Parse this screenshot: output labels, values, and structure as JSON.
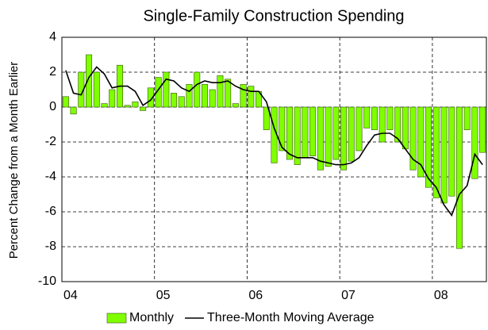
{
  "chart_data": {
    "type": "bar_line",
    "title": "Single-Family Construction Spending",
    "y_label": "Percent Change from a  Month Earlier",
    "categories": [
      "04",
      null,
      null,
      null,
      null,
      null,
      null,
      null,
      null,
      null,
      null,
      null,
      "05",
      null,
      null,
      null,
      null,
      null,
      null,
      null,
      null,
      null,
      null,
      null,
      "06",
      null,
      null,
      null,
      null,
      null,
      null,
      null,
      null,
      null,
      null,
      null,
      "07",
      null,
      null,
      null,
      null,
      null,
      null,
      null,
      null,
      null,
      null,
      null,
      "08",
      null,
      null,
      null,
      null,
      null,
      null
    ],
    "series": [
      {
        "name": "Monthly",
        "color": "#80ff00",
        "kind": "bar",
        "values": [
          0.6,
          -0.4,
          2.0,
          3.0,
          2.0,
          0.2,
          1.0,
          2.4,
          0.1,
          0.3,
          -0.2,
          1.1,
          1.7,
          2.0,
          0.8,
          0.6,
          1.3,
          2.0,
          1.3,
          1.0,
          1.8,
          1.6,
          0.2,
          1.3,
          1.2,
          0.9,
          -1.3,
          -3.2,
          -2.5,
          -3.0,
          -3.3,
          -2.9,
          -2.8,
          -3.6,
          -3.4,
          -3.0,
          -3.6,
          -3.1,
          -2.5,
          -1.2,
          -1.3,
          -2.0,
          -1.3,
          -2.0,
          -2.4,
          -3.6,
          -4.0,
          -4.6,
          -5.2,
          -5.5,
          -5.1,
          -8.1,
          -1.3,
          -4.1,
          -2.6
        ]
      },
      {
        "name": "Three-Month Moving Average",
        "color": "#000000",
        "kind": "line",
        "values": [
          2.1,
          0.8,
          0.7,
          1.7,
          2.3,
          1.9,
          1.1,
          1.2,
          1.2,
          0.9,
          0.1,
          0.4,
          1.0,
          1.6,
          1.5,
          1.1,
          0.9,
          1.3,
          1.5,
          1.4,
          1.4,
          1.5,
          1.2,
          1.0,
          0.9,
          0.9,
          0.3,
          -1.2,
          -2.3,
          -2.7,
          -2.9,
          -2.9,
          -2.9,
          -3.1,
          -3.2,
          -3.3,
          -3.3,
          -3.2,
          -2.9,
          -2.2,
          -1.6,
          -1.5,
          -1.5,
          -1.8,
          -2.4,
          -3.0,
          -3.3,
          -4.1,
          -4.6,
          -5.6,
          -6.2,
          -5.0,
          -4.5,
          -2.7,
          -3.3
        ]
      }
    ],
    "ylim": [
      -10,
      4
    ],
    "yticks": [
      -10,
      -8,
      -6,
      -4,
      -2,
      0,
      2,
      4
    ],
    "grid": true
  }
}
